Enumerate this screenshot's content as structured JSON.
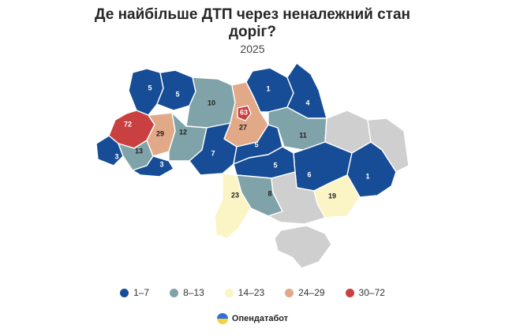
{
  "header": {
    "title_line1": "Де найбільше ДТП через неналежний стан",
    "title_line2": "доріг?",
    "subtitle": "2025"
  },
  "colors": {
    "bin1": "#174d96",
    "bin2": "#7fa3a8",
    "bin3": "#fbf4c4",
    "bin4": "#e1a988",
    "bin5": "#c94040",
    "no_data": "#cfcfcf"
  },
  "legend": [
    {
      "label": "1–7",
      "color": "#174d96"
    },
    {
      "label": "8–13",
      "color": "#7fa3a8"
    },
    {
      "label": "14–23",
      "color": "#fbf4c4"
    },
    {
      "label": "24–29",
      "color": "#e1a988"
    },
    {
      "label": "30–72",
      "color": "#c94040"
    }
  ],
  "regions": [
    {
      "id": "volyn",
      "value": "5",
      "bin": 1
    },
    {
      "id": "rivne",
      "value": "5",
      "bin": 1
    },
    {
      "id": "lviv",
      "value": "72",
      "bin": 5
    },
    {
      "id": "ternopil",
      "value": "29",
      "bin": 4
    },
    {
      "id": "khmelnytskyi",
      "value": "12",
      "bin": 2
    },
    {
      "id": "zhytomyr",
      "value": "10",
      "bin": 2
    },
    {
      "id": "kyiv-oblast",
      "value": "27",
      "bin": 4
    },
    {
      "id": "kyiv-city",
      "value": "63",
      "bin": 5
    },
    {
      "id": "chernihiv",
      "value": "1",
      "bin": 1
    },
    {
      "id": "sumy",
      "value": "4",
      "bin": 1
    },
    {
      "id": "poltava",
      "value": "11",
      "bin": 2
    },
    {
      "id": "kharkiv",
      "value": "",
      "bin": 0
    },
    {
      "id": "luhansk",
      "value": "",
      "bin": 0
    },
    {
      "id": "zakarpattia",
      "value": "3",
      "bin": 1
    },
    {
      "id": "ivano-frankivsk",
      "value": "13",
      "bin": 2
    },
    {
      "id": "chernivtsi",
      "value": "3",
      "bin": 1
    },
    {
      "id": "vinnytsia",
      "value": "7",
      "bin": 1
    },
    {
      "id": "cherkasy",
      "value": "5",
      "bin": 1
    },
    {
      "id": "kirovohrad",
      "value": "5",
      "bin": 1
    },
    {
      "id": "dnipropetrovsk",
      "value": "6",
      "bin": 1
    },
    {
      "id": "donetsk",
      "value": "1",
      "bin": 1
    },
    {
      "id": "odesa",
      "value": "23",
      "bin": 3
    },
    {
      "id": "mykolaiv",
      "value": "8",
      "bin": 2
    },
    {
      "id": "zaporizhzhia",
      "value": "19",
      "bin": 3
    },
    {
      "id": "kherson",
      "value": "",
      "bin": 0
    },
    {
      "id": "crimea",
      "value": "",
      "bin": 0
    }
  ],
  "brand": {
    "name": "Опендатабот",
    "logo_top": "#2f6fd6",
    "logo_bottom": "#f4d23c"
  }
}
